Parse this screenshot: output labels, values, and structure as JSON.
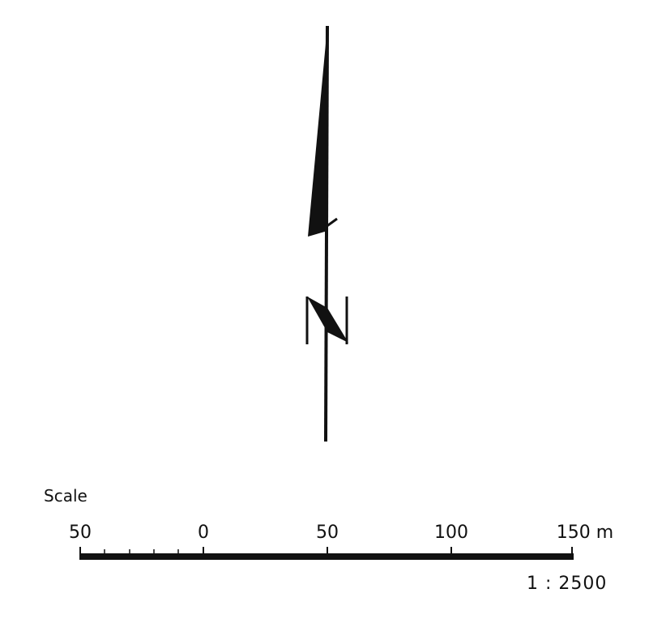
{
  "north_arrow": {
    "letter": "N",
    "icon": "north-arrow-icon"
  },
  "scale": {
    "title": "Scale",
    "labels": [
      "50",
      "0",
      "50",
      "100",
      "150 m"
    ],
    "ratio": "1 : 2500"
  }
}
